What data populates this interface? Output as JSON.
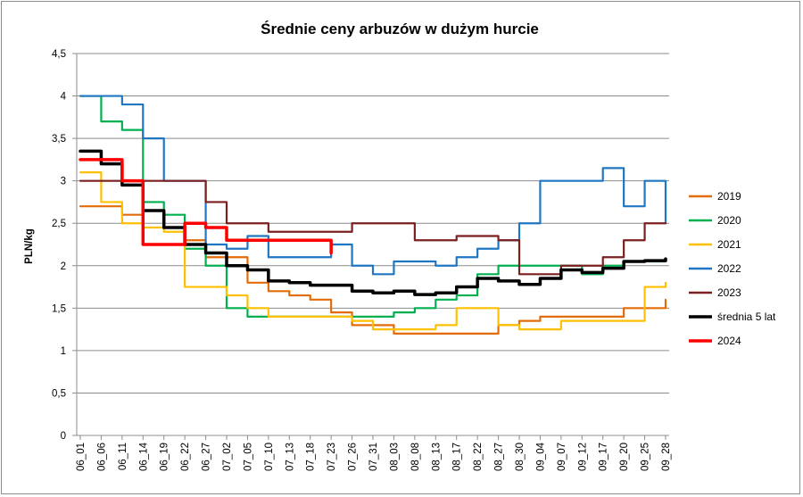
{
  "chart_data": {
    "type": "line",
    "title": "Średnie ceny arbuzów w dużym hurcie",
    "xlabel": "",
    "ylabel": "PLN/kg",
    "ylim": [
      0,
      4.5
    ],
    "yticks": [
      "0",
      "0,5",
      "1",
      "1,5",
      "2",
      "2,5",
      "3",
      "3,5",
      "4",
      "4,5"
    ],
    "grid": true,
    "legend_position": "right",
    "categories": [
      "06_01",
      "06_06",
      "06_11",
      "06_14",
      "06_19",
      "06_22",
      "06_27",
      "07_02",
      "07_05",
      "07_10",
      "07_13",
      "07_18",
      "07_23",
      "07_26",
      "07_31",
      "08_03",
      "08_08",
      "08_13",
      "08_17",
      "08_22",
      "08_27",
      "08_30",
      "09_04",
      "09_07",
      "09_12",
      "09_17",
      "09_20",
      "09_25",
      "09_28"
    ],
    "series": [
      {
        "name": "2019",
        "color": "#e36c0a",
        "values": [
          2.7,
          2.7,
          2.6,
          2.25,
          2.25,
          2.3,
          2.1,
          2.1,
          1.8,
          1.7,
          1.65,
          1.6,
          1.45,
          1.3,
          1.3,
          1.2,
          1.2,
          1.2,
          1.2,
          1.2,
          1.3,
          1.35,
          1.4,
          1.4,
          1.4,
          1.4,
          1.5,
          1.5,
          1.6
        ]
      },
      {
        "name": "2020",
        "color": "#00b050",
        "values": [
          4.0,
          3.7,
          3.6,
          2.75,
          2.6,
          2.2,
          2.0,
          1.5,
          1.4,
          1.4,
          1.4,
          1.4,
          1.4,
          1.4,
          1.4,
          1.45,
          1.5,
          1.6,
          1.65,
          1.9,
          2.0,
          2.0,
          2.0,
          2.0,
          1.9,
          2.0,
          2.05,
          2.05,
          2.05
        ]
      },
      {
        "name": "2021",
        "color": "#ffc000",
        "values": [
          3.1,
          2.75,
          2.5,
          2.45,
          2.4,
          1.75,
          1.75,
          1.65,
          1.5,
          1.4,
          1.4,
          1.4,
          1.4,
          1.35,
          1.25,
          1.25,
          1.25,
          1.3,
          1.5,
          1.5,
          1.3,
          1.25,
          1.25,
          1.35,
          1.35,
          1.35,
          1.35,
          1.75,
          1.8
        ]
      },
      {
        "name": "2022",
        "color": "#1f77c4",
        "values": [
          4.0,
          4.0,
          3.9,
          3.5,
          3.0,
          3.0,
          2.25,
          2.2,
          2.35,
          2.1,
          2.1,
          2.1,
          2.25,
          2.0,
          1.9,
          2.05,
          2.05,
          2.0,
          2.1,
          2.2,
          2.3,
          2.5,
          3.0,
          3.0,
          3.0,
          3.15,
          2.7,
          3.0,
          2.5
        ]
      },
      {
        "name": "2023",
        "color": "#7b1f1f",
        "values": [
          3.0,
          3.0,
          3.0,
          3.0,
          3.0,
          3.0,
          2.75,
          2.5,
          2.5,
          2.4,
          2.4,
          2.4,
          2.4,
          2.5,
          2.5,
          2.5,
          2.3,
          2.3,
          2.35,
          2.35,
          2.3,
          1.9,
          1.9,
          2.0,
          2.0,
          2.1,
          2.3,
          2.5,
          2.5
        ]
      },
      {
        "name": "średnia 5 lat",
        "color": "#000000",
        "values": [
          3.35,
          3.2,
          2.95,
          2.65,
          2.45,
          2.25,
          2.15,
          2.0,
          1.95,
          1.82,
          1.8,
          1.77,
          1.77,
          1.7,
          1.68,
          1.7,
          1.66,
          1.68,
          1.75,
          1.85,
          1.82,
          1.78,
          1.85,
          1.95,
          1.92,
          1.97,
          2.05,
          2.06,
          2.08
        ]
      },
      {
        "name": "2024",
        "color": "#ff0000",
        "values": [
          3.25,
          3.25,
          3.0,
          2.25,
          2.25,
          2.5,
          2.45,
          2.3,
          2.3,
          2.3,
          2.3,
          2.3,
          2.15,
          null,
          null,
          null,
          null,
          null,
          null,
          null,
          null,
          null,
          null,
          null,
          null,
          null,
          null,
          null,
          null
        ]
      }
    ]
  }
}
